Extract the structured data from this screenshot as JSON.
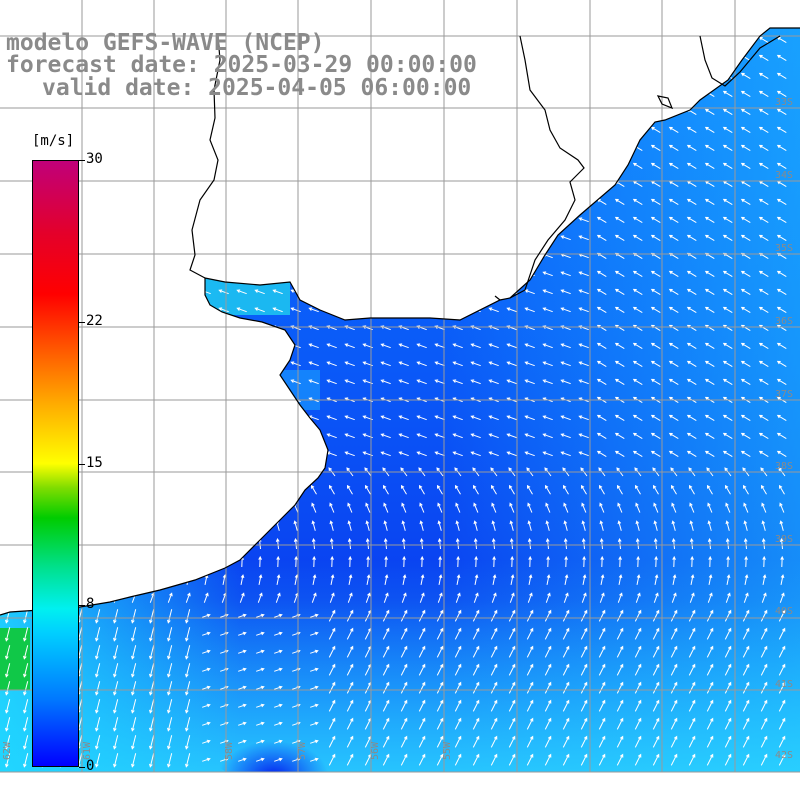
{
  "header": {
    "model": "modelo GEFS-WAVE (NCEP)",
    "forecast": "forecast date: 2025-03-29 00:00:00",
    "valid": "valid date: 2025-04-05 06:00:00"
  },
  "legend": {
    "unit": "[m/s]",
    "ticks": [
      {
        "label": "30",
        "value": 30
      },
      {
        "label": "22",
        "value": 22
      },
      {
        "label": "15",
        "value": 15
      },
      {
        "label": "8",
        "value": 8
      },
      {
        "label": "0",
        "value": 0
      }
    ]
  },
  "colors": {
    "ocean_low": "#0a3ff0",
    "ocean_mid": "#0a70ff",
    "ocean_high": "#20d8f0",
    "green_patch": "#10c848",
    "land": "#ffffff",
    "coast": "#000000",
    "grid": "#9a9a9a"
  }
}
